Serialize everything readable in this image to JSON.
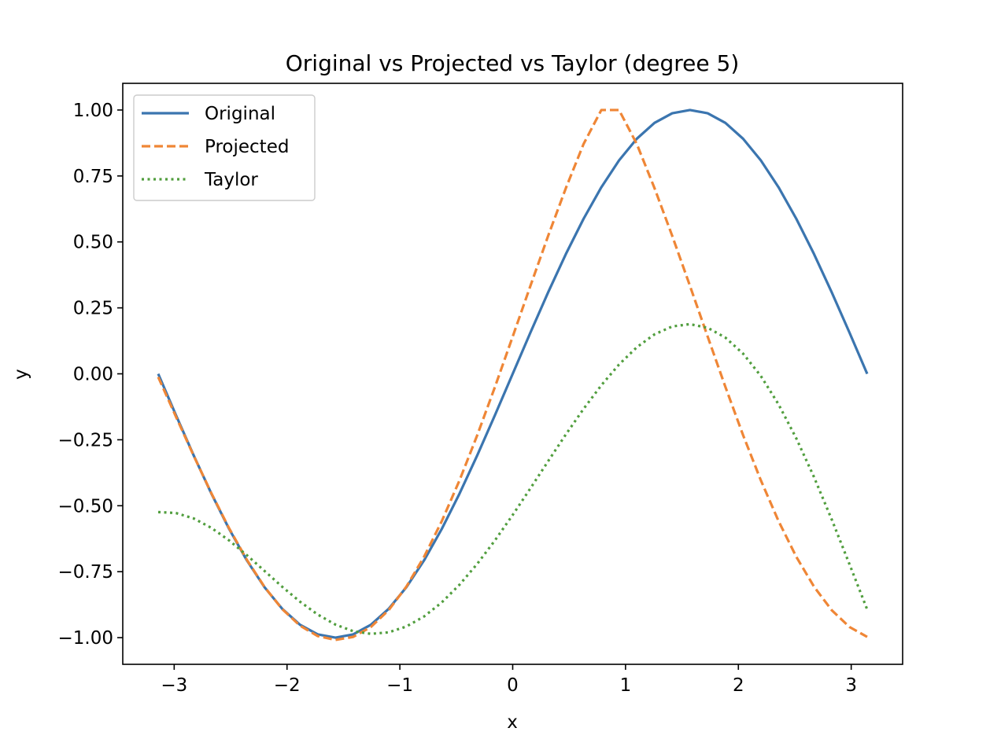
{
  "chart_data": {
    "type": "line",
    "title": "Original vs Projected vs Taylor (degree 5)",
    "xlabel": "x",
    "ylabel": "y",
    "xlim": [
      -3.4557,
      3.4557
    ],
    "ylim": [
      -1.1011,
      1.1011
    ],
    "xticks": [
      -3,
      -2,
      -1,
      0,
      1,
      2,
      3
    ],
    "xtick_labels": [
      "−3",
      "−2",
      "−1",
      "0",
      "1",
      "2",
      "3"
    ],
    "yticks": [
      -1.0,
      -0.75,
      -0.5,
      -0.25,
      0.0,
      0.25,
      0.5,
      0.75,
      1.0
    ],
    "ytick_labels": [
      "−1.00",
      "−0.75",
      "−0.50",
      "−0.25",
      "0.00",
      "0.25",
      "0.50",
      "0.75",
      "1.00"
    ],
    "grid": false,
    "legend_position": "upper-left",
    "x": [
      -3.1416,
      -2.9845,
      -2.8274,
      -2.6704,
      -2.5133,
      -2.3562,
      -2.1991,
      -2.042,
      -1.885,
      -1.7279,
      -1.5708,
      -1.4137,
      -1.2566,
      -1.0996,
      -0.9425,
      -0.7854,
      -0.6283,
      -0.4712,
      -0.3142,
      -0.1571,
      0.0,
      0.1571,
      0.3142,
      0.4712,
      0.6283,
      0.7854,
      0.9425,
      1.0996,
      1.2566,
      1.4137,
      1.5708,
      1.7279,
      1.885,
      2.042,
      2.1991,
      2.3562,
      2.5133,
      2.6704,
      2.8274,
      2.9845,
      3.1416
    ],
    "series": [
      {
        "name": "Original",
        "color": "#3b75af",
        "style": "solid",
        "values": [
          0.0,
          -0.1564,
          -0.309,
          -0.454,
          -0.5878,
          -0.7071,
          -0.809,
          -0.891,
          -0.9511,
          -0.9877,
          -1.0,
          -0.9877,
          -0.9511,
          -0.891,
          -0.809,
          -0.7071,
          -0.5878,
          -0.454,
          -0.309,
          -0.1564,
          0.0,
          0.1564,
          0.309,
          0.454,
          0.5878,
          0.7071,
          0.809,
          0.891,
          0.9511,
          0.9877,
          1.0,
          0.9877,
          0.9511,
          0.891,
          0.809,
          0.7071,
          0.5878,
          0.454,
          0.309,
          0.1564,
          0.0
        ]
      },
      {
        "name": "Projected",
        "color": "#ef8636",
        "style": "dashed",
        "values": [
          -0.0121,
          -0.1622,
          -0.3103,
          -0.4526,
          -0.5853,
          -0.7048,
          -0.808,
          -0.8921,
          -0.9547,
          -0.9941,
          -1.0085,
          -0.9972,
          -0.9596,
          -0.896,
          -0.8068,
          -0.6936,
          -0.5583,
          -0.4036,
          -0.2327,
          -0.0495,
          0.1411,
          0.3336,
          0.523,
          0.704,
          0.8714,
          1.0,
          1.0,
          0.8714,
          0.704,
          0.523,
          0.3336,
          0.1411,
          -0.0495,
          -0.2327,
          -0.4036,
          -0.5583,
          -0.6936,
          -0.8068,
          -0.896,
          -0.9596,
          -0.9972
        ]
      },
      {
        "name": "Taylor",
        "color": "#519e3e",
        "style": "dotted",
        "values": [
          -0.524,
          -0.5276,
          -0.5482,
          -0.5839,
          -0.6315,
          -0.6873,
          -0.7473,
          -0.8074,
          -0.8637,
          -0.9124,
          -0.9505,
          -0.9755,
          -0.9857,
          -0.9799,
          -0.9578,
          -0.9197,
          -0.8664,
          -0.7993,
          -0.7203,
          -0.6313,
          -0.5349,
          -0.4339,
          -0.3311,
          -0.2297,
          -0.1328,
          -0.0434,
          0.0354,
          0.1007,
          0.1496,
          0.1795,
          0.1883,
          0.1746,
          0.1374,
          0.0765,
          -0.0081,
          -0.1158,
          -0.2446,
          -0.3914,
          -0.5521,
          -0.7216,
          -0.8932
        ]
      }
    ]
  }
}
